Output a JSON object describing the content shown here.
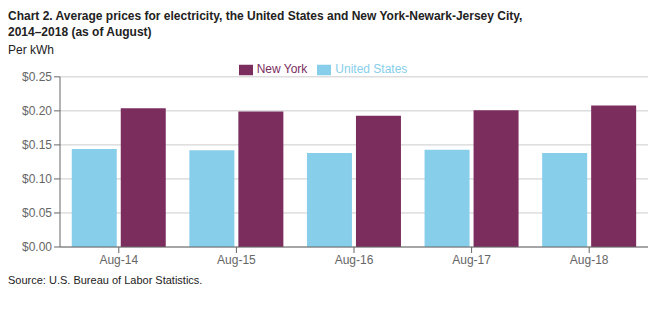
{
  "chart_data": {
    "type": "bar",
    "title": "Chart 2. Average prices for electricity, the United States and New York-Newark-Jersey City,\n2014–2018 (as of August)",
    "ylabel": "Per kWh",
    "source": "Source: U.S. Bureau of Labor Statistics.",
    "categories": [
      "Aug-14",
      "Aug-15",
      "Aug-16",
      "Aug-17",
      "Aug-18"
    ],
    "series": [
      {
        "name": "United States",
        "color": "#87CEEB",
        "values": [
          0.144,
          0.142,
          0.138,
          0.143,
          0.138
        ]
      },
      {
        "name": "New York",
        "color": "#7B2D5E",
        "values": [
          0.204,
          0.199,
          0.193,
          0.201,
          0.208
        ]
      }
    ],
    "ylim": [
      0,
      0.25
    ],
    "yticks": [
      {
        "value": 0.0,
        "label": "$0.00"
      },
      {
        "value": 0.05,
        "label": "$0.05"
      },
      {
        "value": 0.1,
        "label": "$0.10"
      },
      {
        "value": 0.15,
        "label": "$0.15"
      },
      {
        "value": 0.2,
        "label": "$0.20"
      },
      {
        "value": 0.25,
        "label": "$0.25"
      }
    ],
    "grid": true,
    "legend": "top"
  }
}
